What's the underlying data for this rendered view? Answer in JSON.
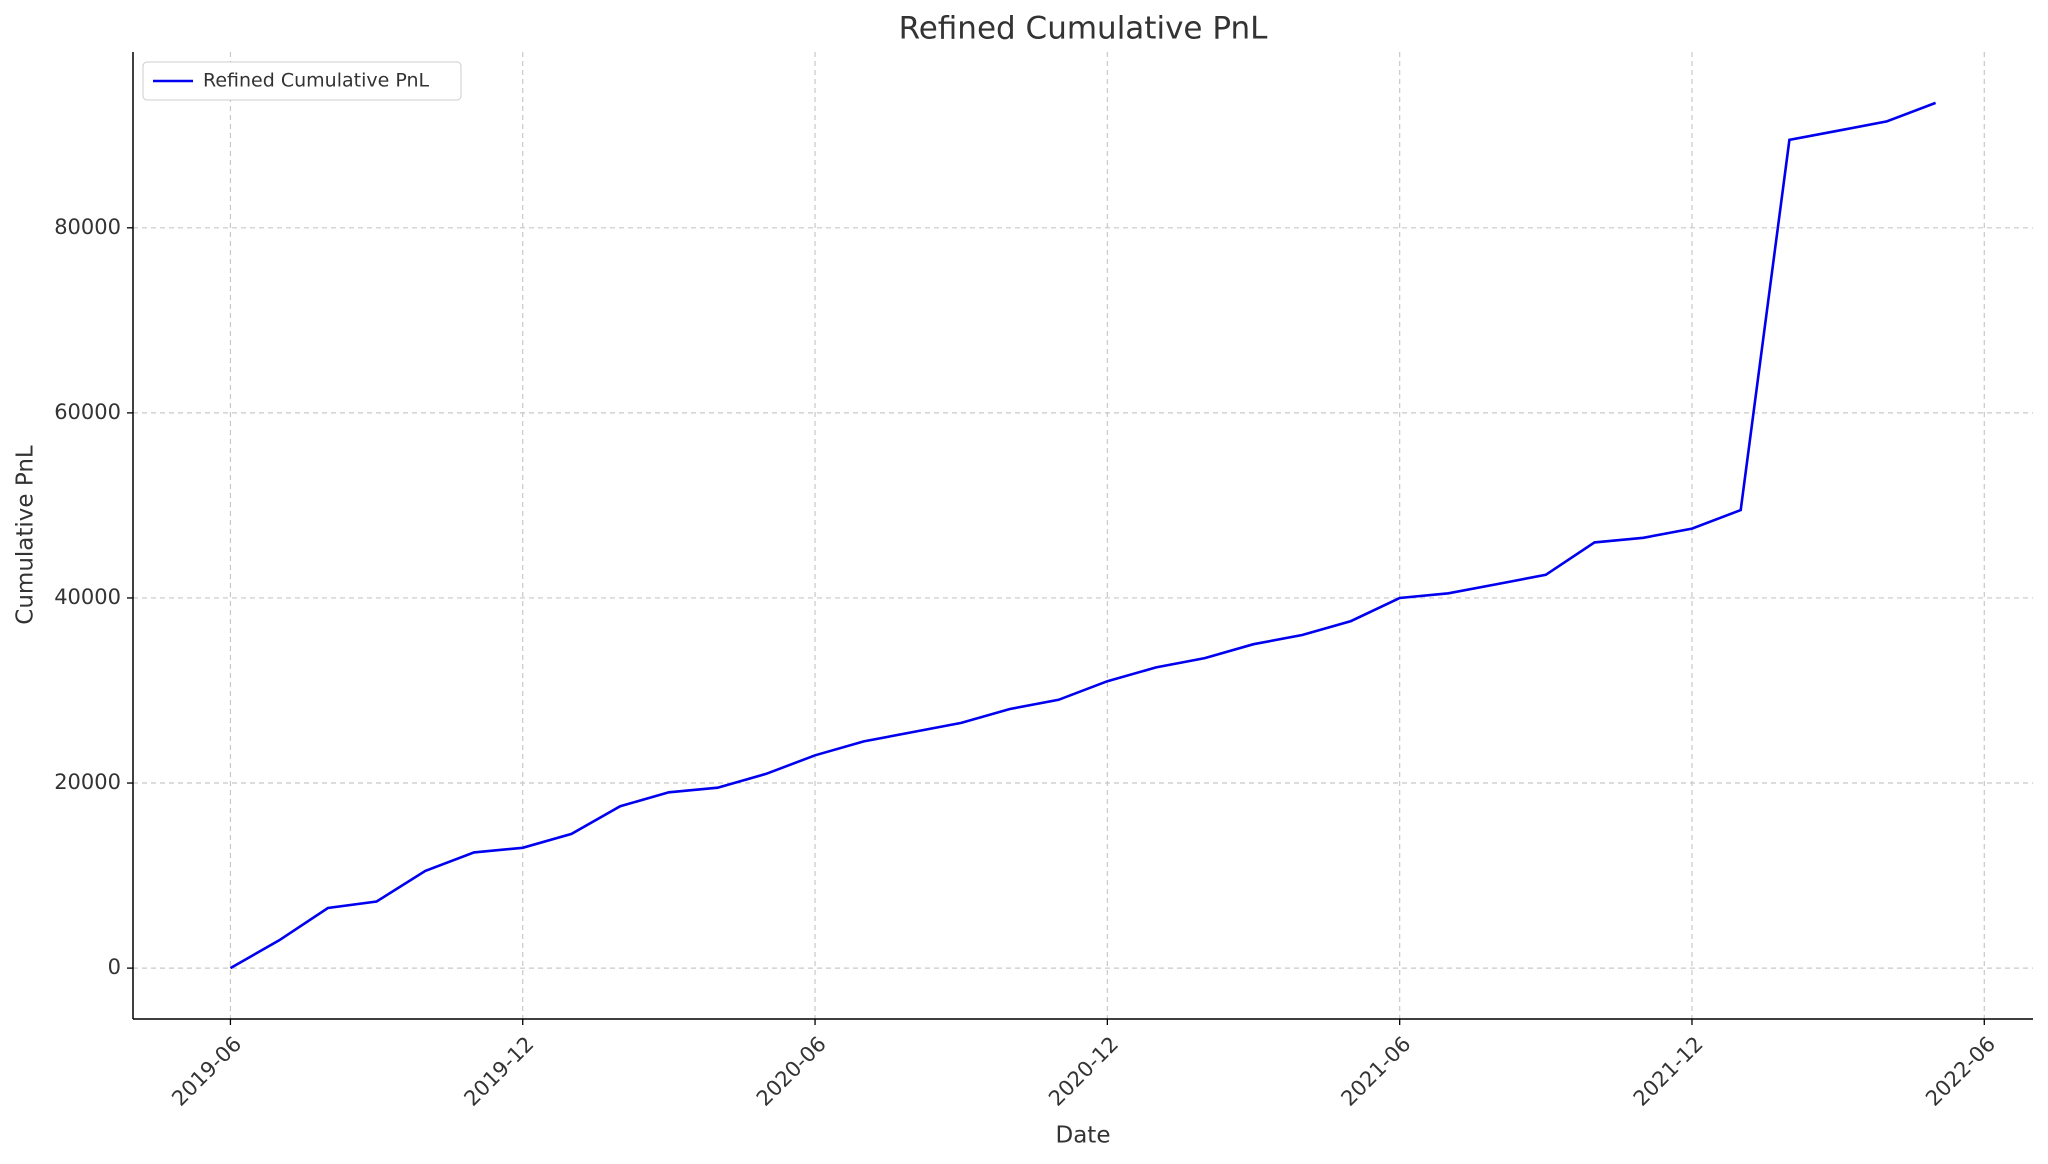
{
  "chart_data": {
    "type": "line",
    "title": "Refined Cumulative PnL",
    "x_label": "Date",
    "y_label": "Cumulative PnL",
    "x": [
      "2019-06",
      "2019-07",
      "2019-08",
      "2019-09",
      "2019-10",
      "2019-11",
      "2019-12",
      "2020-01",
      "2020-02",
      "2020-03",
      "2020-04",
      "2020-05",
      "2020-06",
      "2020-07",
      "2020-08",
      "2020-09",
      "2020-10",
      "2020-11",
      "2020-12",
      "2021-01",
      "2021-02",
      "2021-03",
      "2021-04",
      "2021-05",
      "2021-06",
      "2021-07",
      "2021-08",
      "2021-09",
      "2021-10",
      "2021-11",
      "2021-12",
      "2022-01",
      "2022-02",
      "2022-03",
      "2022-04",
      "2022-05"
    ],
    "series": [
      {
        "name": "Refined Cumulative PnL",
        "color": "#0000ee",
        "values": [
          0,
          3000,
          6500,
          7200,
          10500,
          12500,
          13000,
          14500,
          17500,
          19000,
          19500,
          21000,
          23000,
          24500,
          25500,
          26500,
          28000,
          29000,
          31000,
          32500,
          33500,
          35000,
          36000,
          37500,
          40000,
          40500,
          41500,
          42500,
          46000,
          46500,
          47500,
          49500,
          89500,
          90500,
          91500,
          93500
        ]
      }
    ],
    "xlim": [
      "2019-04",
      "2022-07"
    ],
    "xticks": [
      "2019-06",
      "2019-12",
      "2020-06",
      "2020-12",
      "2021-06",
      "2021-12",
      "2022-06"
    ],
    "ylim": [
      -5500,
      99000
    ],
    "yticks": [
      0,
      20000,
      40000,
      60000,
      80000
    ],
    "grid": true,
    "legend": "upper left"
  }
}
